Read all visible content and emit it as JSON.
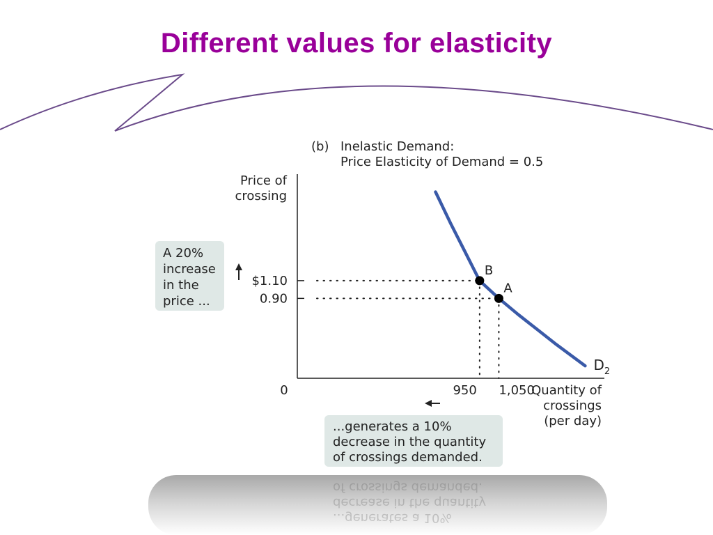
{
  "slide": {
    "title": "Different values for elasticity"
  },
  "figure": {
    "panel_label": "(b)",
    "heading_line1": "Inelastic Demand:",
    "heading_line2": "Price Elasticity of Demand = 0.5",
    "callout_price": [
      "A 20%",
      "increase",
      "in the",
      "price ..."
    ],
    "callout_quantity": [
      "...generates a 10%",
      "decrease in the quantity",
      "of crossings demanded."
    ],
    "colors": {
      "title": "#990099",
      "curve": "#3a5aa8",
      "callout_bg": "#dfe8e6",
      "swoosh": "#6a4a8a"
    }
  },
  "chart_data": {
    "type": "line",
    "title": "Inelastic Demand: Price Elasticity of Demand = 0.5",
    "ylabel_lines": [
      "Price of",
      "crossing"
    ],
    "xlabel_lines": [
      "Quantity of",
      "crossings",
      "(per day)"
    ],
    "origin_label": "0",
    "y_ticks": [
      {
        "value": 1.1,
        "label": "$1.10"
      },
      {
        "value": 0.9,
        "label": "0.90"
      }
    ],
    "x_ticks": [
      {
        "value": 950,
        "label": "950"
      },
      {
        "value": 1050,
        "label": "1,050"
      }
    ],
    "series": [
      {
        "name": "D2",
        "name_main": "D",
        "name_sub": "2",
        "x": [
          720,
          800,
          880,
          950,
          1000,
          1050,
          1150,
          1250,
          1350,
          1500
        ],
        "y": [
          2.1,
          1.74,
          1.4,
          1.1,
          1.0,
          0.9,
          0.72,
          0.55,
          0.38,
          0.14
        ]
      }
    ],
    "points": [
      {
        "label": "B",
        "x": 950,
        "y": 1.1
      },
      {
        "label": "A",
        "x": 1050,
        "y": 0.9
      }
    ],
    "xlim": [
      0,
      1600
    ],
    "ylim": [
      0,
      2.3
    ],
    "arrows": {
      "price": "up",
      "quantity": "left"
    },
    "grid": false
  }
}
